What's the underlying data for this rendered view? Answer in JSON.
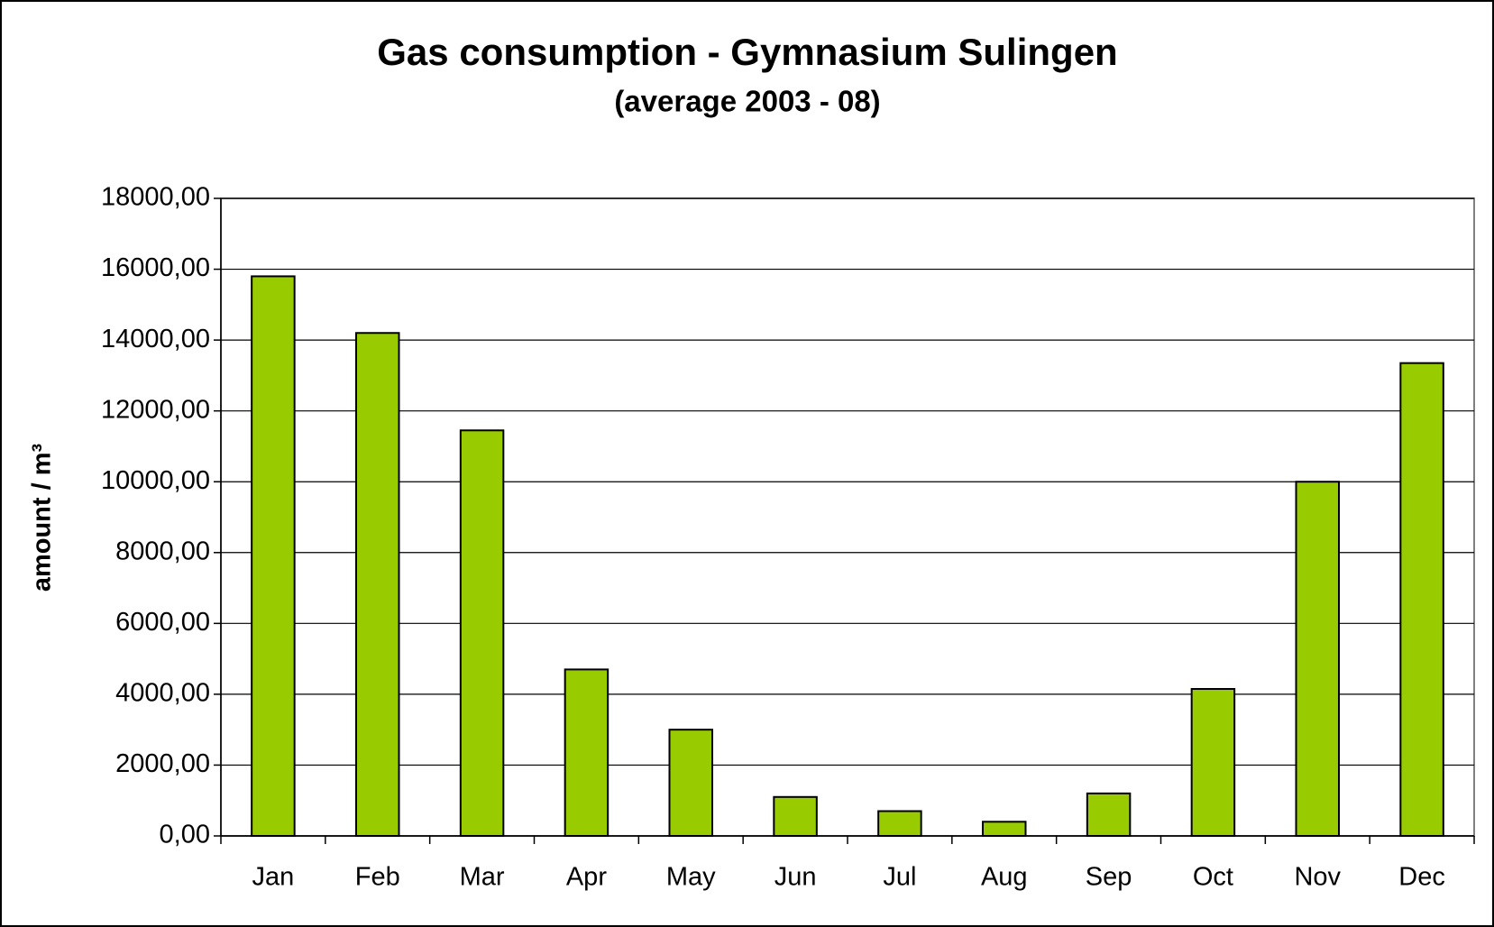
{
  "chart_data": {
    "type": "bar",
    "title": "Gas consumption - Gymnasium Sulingen",
    "subtitle": "(average 2003 - 08)",
    "y_label": "amount / m³",
    "categories": [
      "Jan",
      "Feb",
      "Mar",
      "Apr",
      "May",
      "Jun",
      "Jul",
      "Aug",
      "Sep",
      "Oct",
      "Nov",
      "Dec"
    ],
    "values": [
      15800,
      14200,
      11450,
      4700,
      3000,
      1100,
      700,
      400,
      1200,
      4150,
      10000,
      13350
    ],
    "color": "#99cc00",
    "ylim": [
      0,
      18000
    ],
    "yticks": [
      {
        "value": 0,
        "label": "0,00"
      },
      {
        "value": 2000,
        "label": "2000,00"
      },
      {
        "value": 4000,
        "label": "4000,00"
      },
      {
        "value": 6000,
        "label": "6000,00"
      },
      {
        "value": 8000,
        "label": "8000,00"
      },
      {
        "value": 10000,
        "label": "10000,00"
      },
      {
        "value": 12000,
        "label": "12000,00"
      },
      {
        "value": 14000,
        "label": "14000,00"
      },
      {
        "value": 16000,
        "label": "16000,00"
      },
      {
        "value": 18000,
        "label": "18000,00"
      }
    ],
    "grid": true
  }
}
